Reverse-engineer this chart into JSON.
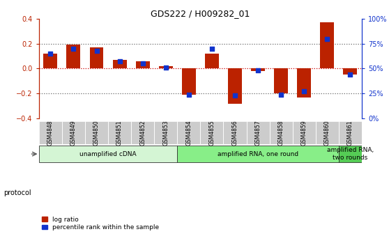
{
  "title": "GDS222 / H009282_01",
  "samples": [
    "GSM4848",
    "GSM4849",
    "GSM4850",
    "GSM4851",
    "GSM4852",
    "GSM4853",
    "GSM4854",
    "GSM4855",
    "GSM4856",
    "GSM4857",
    "GSM4858",
    "GSM4859",
    "GSM4860",
    "GSM4861"
  ],
  "log_ratio": [
    0.12,
    0.19,
    0.17,
    0.07,
    0.06,
    0.02,
    -0.21,
    0.12,
    -0.28,
    -0.02,
    -0.2,
    -0.23,
    0.37,
    -0.05
  ],
  "percentile_rank_pct": [
    65,
    70,
    68,
    57,
    55,
    51,
    24,
    70,
    23,
    48,
    24,
    27,
    80,
    44
  ],
  "protocol_groups": [
    {
      "label": "unamplified cDNA",
      "start": 0,
      "end": 5,
      "color": "#d4f5d4"
    },
    {
      "label": "amplified RNA, one round",
      "start": 6,
      "end": 12,
      "color": "#88ee88"
    },
    {
      "label": "amplified RNA,\ntwo rounds",
      "start": 13,
      "end": 13,
      "color": "#55cc55"
    }
  ],
  "bar_color_red": "#bb2200",
  "bar_color_blue": "#1133cc",
  "ylim_left": [
    -0.4,
    0.4
  ],
  "ylim_right": [
    0,
    100
  ],
  "yticks_left": [
    -0.4,
    -0.2,
    0.0,
    0.2,
    0.4
  ],
  "yticks_right": [
    0,
    25,
    50,
    75,
    100
  ],
  "ytick_labels_right": [
    "0%",
    "25%",
    "50%",
    "75%",
    "100%"
  ],
  "hlines": [
    -0.2,
    0.0,
    0.2
  ],
  "protocol_label": "protocol",
  "legend_red": "log ratio",
  "legend_blue": "percentile rank within the sample",
  "bar_width": 0.6,
  "blue_square_size": 20
}
